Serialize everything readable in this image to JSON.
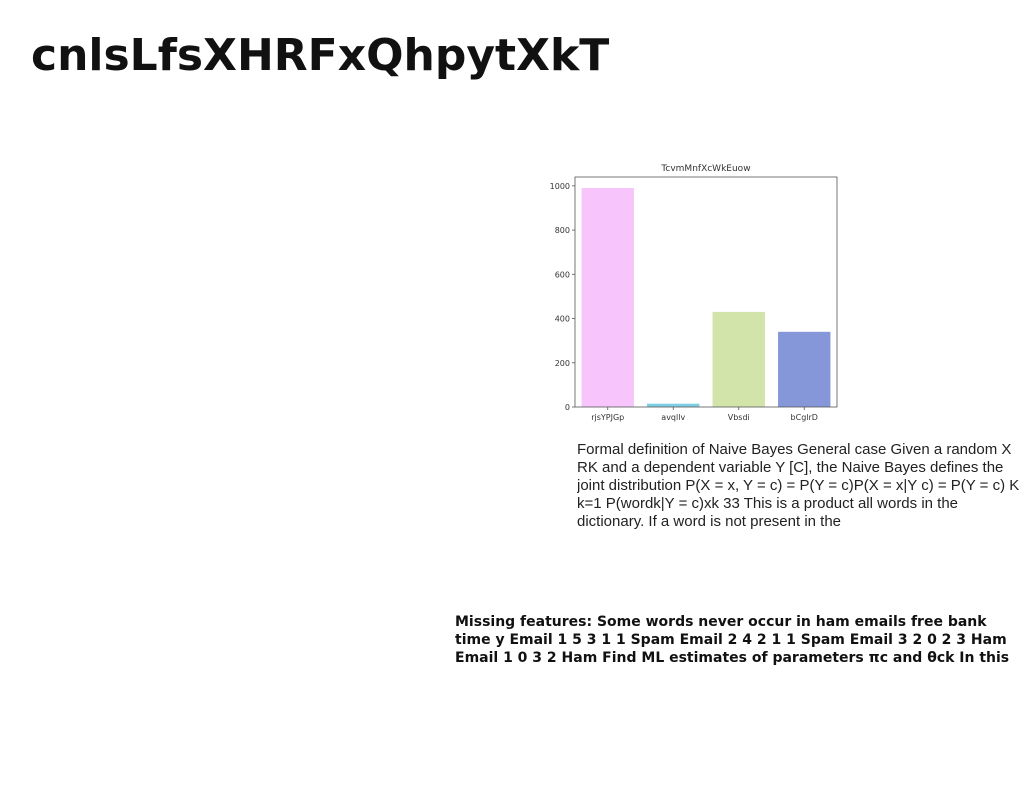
{
  "page": {
    "title": "cnlsLfsXHRFxQhpytXkT",
    "body_text": "Formal definition of Naive Bayes General case Given a random X  RK and a dependent variable Y  [C], the Naive Bayes defines the joint distribution P(X = x, Y = c) = P(Y = c)P(X = x|Y c) = P(Y = c) K  k=1 P(wordk|Y = c)xk 33 This is a product all words in the dictionary. If a word is not present in the",
    "caption_text": "Missing features: Some words never occur in ham emails free bank time y Email 1 5 3 1 1 Spam Email 2 4 2 1 1 Spam Email 3 2 0 2 3 Ham Email 1 0 3 2 Ham Find ML estimates of parameters πc and θck In this"
  },
  "chart_data": {
    "type": "bar",
    "title": "TcvmMnfXcWkEuow",
    "categories": [
      "rjsYPJGp",
      "avqllv",
      "Vbsdi",
      "bCglrD"
    ],
    "values": [
      990,
      15,
      430,
      340
    ],
    "colors": [
      "#f7c5fb",
      "#7ecfe3",
      "#d3e4aa",
      "#8597d8"
    ],
    "xlabel": "",
    "ylabel": "",
    "ylim": [
      0,
      1040
    ],
    "yticks": [
      0,
      200,
      400,
      600,
      800,
      1000
    ],
    "grid": false
  }
}
